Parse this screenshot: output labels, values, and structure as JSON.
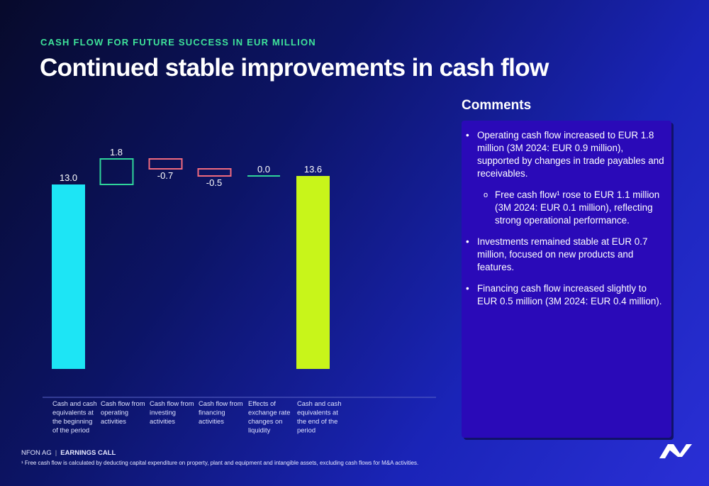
{
  "header": {
    "kicker": "CASH FLOW FOR FUTURE SUCCESS IN EUR MILLION",
    "title": "Continued stable improvements in cash flow"
  },
  "comments": {
    "heading": "Comments",
    "items": [
      {
        "level": 1,
        "bullet": "•",
        "text": "Operating cash flow increased to EUR 1.8 million (3M 2024: EUR 0.9 million), supported by changes in trade payables and receivables."
      },
      {
        "level": 2,
        "bullet": "o",
        "text": "Free cash flow¹ rose to EUR 1.1 million (3M 2024: EUR 0.1 million), reflecting strong operational performance."
      },
      {
        "level": 1,
        "bullet": "•",
        "text": "Investments remained stable at EUR 0.7 million, focused on new products and features."
      },
      {
        "level": 1,
        "bullet": "•",
        "text": "Financing cash flow increased slightly to EUR 0.5 million (3M 2024: EUR 0.4 million)."
      }
    ]
  },
  "chart_data": {
    "type": "bar",
    "subtype": "waterfall",
    "categories": [
      "Cash and cash equivalents at the beginning of the period",
      "Cash flow from operating activities",
      "Cash flow from investing activities",
      "Cash flow from financing activities",
      "Effects of exchange rate changes on liquidity",
      "Cash and cash equivalents at the end of the period"
    ],
    "category_lines": [
      [
        "Cash and cash",
        "equivalents at",
        "the beginning",
        "of the period"
      ],
      [
        "Cash flow from",
        "operating",
        "activities"
      ],
      [
        "Cash flow from",
        "investing",
        "activities"
      ],
      [
        "Cash flow from",
        "financing",
        "activities"
      ],
      [
        "Effects of",
        "exchange rate",
        "changes on",
        "liquidity"
      ],
      [
        "Cash and cash",
        "equivalents at",
        "the end of the",
        "period"
      ]
    ],
    "values": [
      13.0,
      1.8,
      -0.7,
      -0.5,
      0.0,
      13.6
    ],
    "labels": [
      "13.0",
      "1.8",
      "-0.7",
      "-0.5",
      "0.0",
      "13.6"
    ],
    "kinds": [
      "total",
      "delta",
      "delta",
      "delta",
      "delta",
      "total"
    ],
    "ylim": [
      0,
      14.6
    ],
    "grid": false,
    "colors": {
      "start_total": "#1de5f5",
      "end_total": "#c8f51a",
      "positive": "#2fd49a",
      "negative": "#f06a7e",
      "baseline": "#5b64c8"
    }
  },
  "footer": {
    "company": "NFON AG",
    "separator": "|",
    "event": "EARNINGS CALL",
    "footnote": "¹ Free cash flow is calculated by deducting capital expenditure on property, plant and equipment and intangible assets, excluding cash flows for M&A activities."
  }
}
